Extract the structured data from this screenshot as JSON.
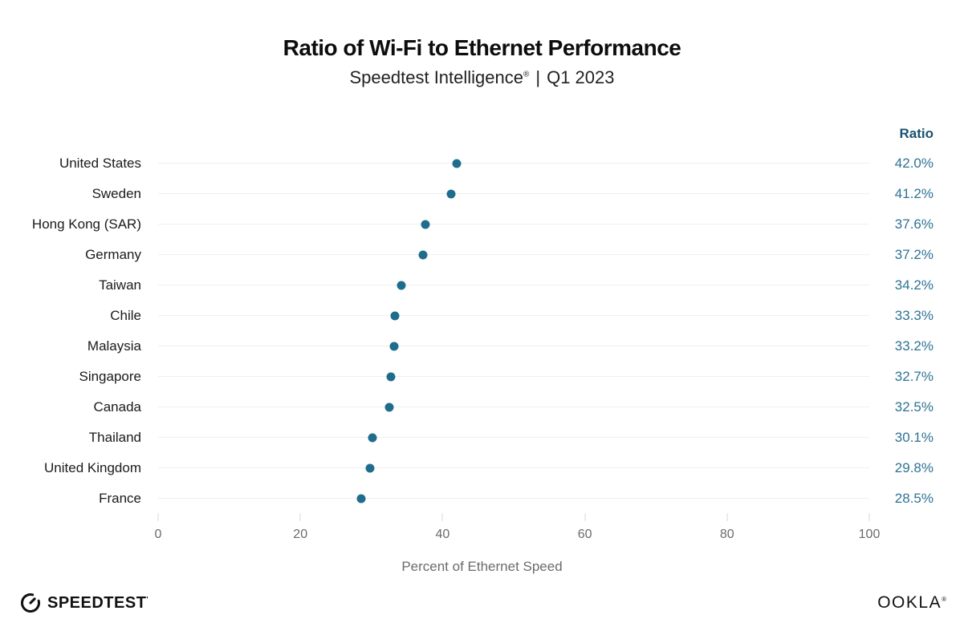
{
  "header": {
    "title": "Ratio of Wi-Fi to Ethernet Performance",
    "subtitle_brand": "Speedtest Intelligence",
    "subtitle_reg": "®",
    "subtitle_separator": "|",
    "subtitle_period": "Q1 2023"
  },
  "chart_data": {
    "type": "scatter",
    "variant": "horizontal-dot-plot",
    "title": "Ratio of Wi-Fi to Ethernet Performance",
    "subtitle": "Speedtest Intelligence® | Q1 2023",
    "categories": [
      "United States",
      "Sweden",
      "Hong Kong (SAR)",
      "Germany",
      "Taiwan",
      "Chile",
      "Malaysia",
      "Singapore",
      "Canada",
      "Thailand",
      "United Kingdom",
      "France"
    ],
    "values": [
      42.0,
      41.2,
      37.6,
      37.2,
      34.2,
      33.3,
      33.2,
      32.7,
      32.5,
      30.1,
      29.8,
      28.5
    ],
    "value_labels": [
      "42.0%",
      "41.2%",
      "37.6%",
      "37.2%",
      "34.2%",
      "33.3%",
      "33.2%",
      "32.7%",
      "32.5%",
      "30.1%",
      "29.8%",
      "28.5%"
    ],
    "value_column_header": "Ratio",
    "xlabel": "Percent of Ethernet Speed",
    "ylabel": "",
    "xlim": [
      0,
      100
    ],
    "x_ticks": [
      0,
      20,
      40,
      60,
      80,
      100
    ],
    "grid": "horizontal row gridlines only",
    "legend": "none",
    "colors": {
      "dot": "#1e6d8d",
      "value_text": "#2d7394",
      "value_header": "#19536e",
      "gridline": "#efefef",
      "tick": "#d8d8d8",
      "axis_text": "#6b6b6b",
      "label_text": "#1a1a1a"
    }
  },
  "footer": {
    "speedtest_label": "SPEEDTEST",
    "speedtest_tm": "'",
    "ookla_label": "OOKLA",
    "ookla_reg": "®"
  }
}
